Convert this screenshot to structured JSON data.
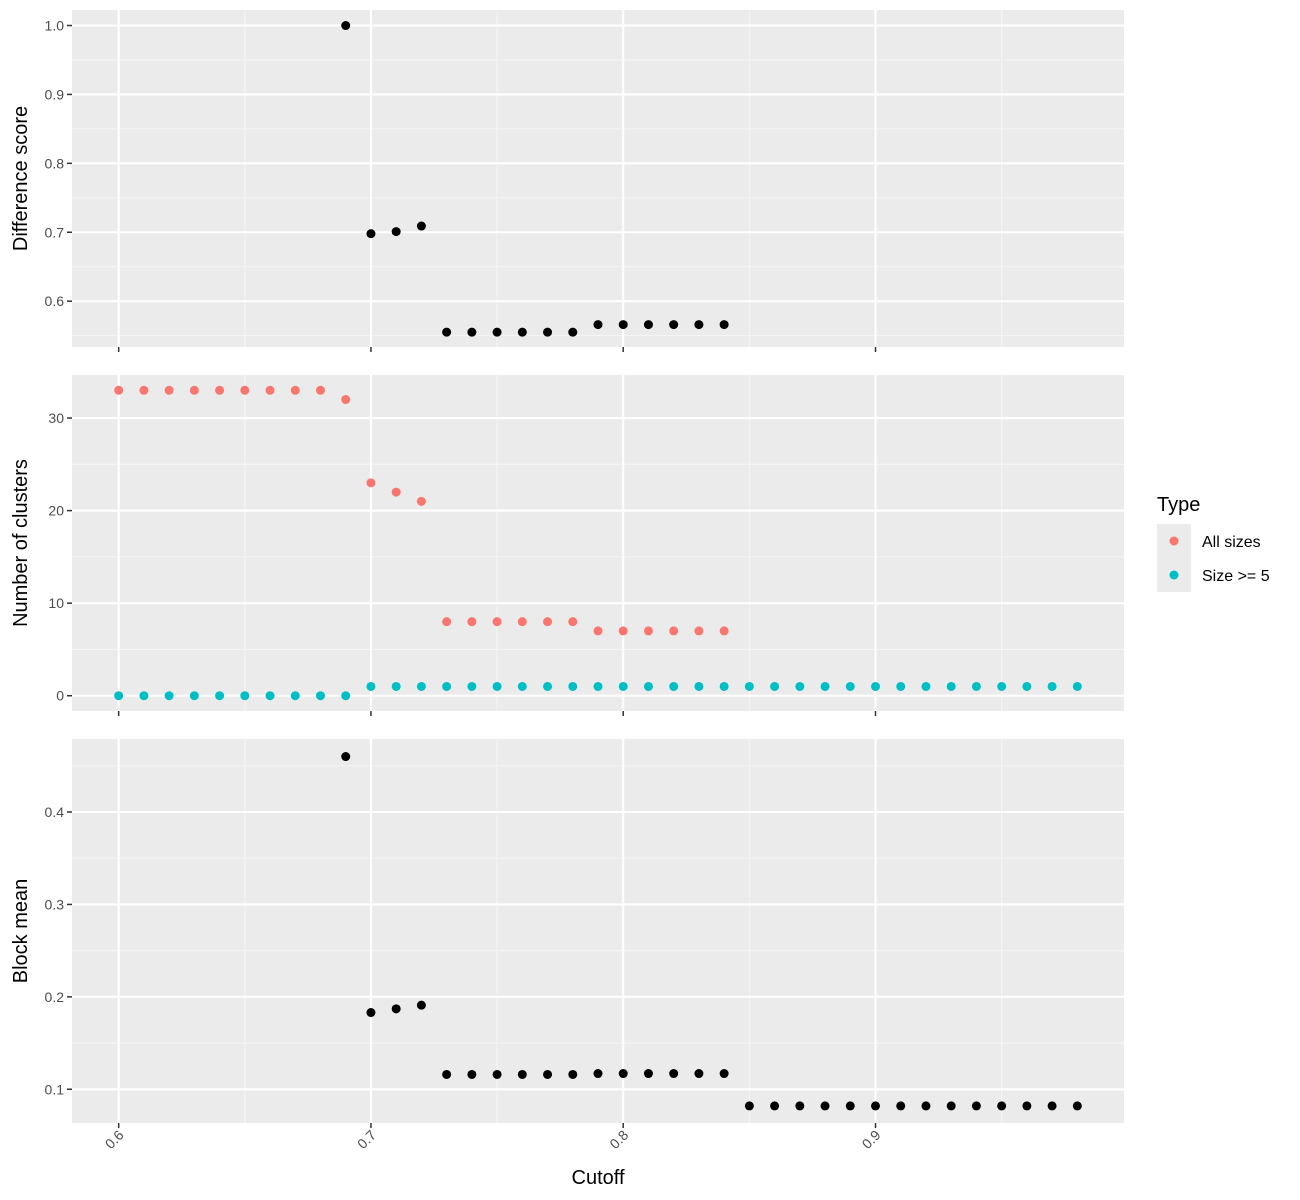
{
  "colors": {
    "panel_bg": "#EBEBEB",
    "grid_major": "#FFFFFF",
    "grid_minor": "#F5F5F5",
    "tick": "#333333",
    "tick_text": "#4D4D4D",
    "black_points": "#000000",
    "all_sizes": "#F8766D",
    "size_ge5": "#00BFC4"
  },
  "chart_data": {
    "type": "scatter",
    "layout": "three vertically stacked panels with a shared x axis",
    "xlabel": "Cutoff",
    "x_ticks": [
      0.6,
      0.7,
      0.8,
      0.9
    ],
    "x_tick_labels": [
      "0.6",
      "0.7",
      "0.8",
      "0.9"
    ],
    "xlim": [
      0.5815,
      0.9985
    ],
    "grid": true,
    "legend": {
      "title": "Type",
      "placement": "right",
      "items": [
        {
          "label": "All sizes",
          "color": "#F8766D"
        },
        {
          "label": "Size >= 5",
          "color": "#00BFC4"
        }
      ]
    },
    "panels": [
      {
        "ylabel": "Difference score",
        "ylim": [
          0.5335,
          1.0225
        ],
        "y_ticks": [
          0.6,
          0.7,
          0.8,
          0.9,
          1.0
        ],
        "y_tick_labels": [
          "0.6",
          "0.7",
          "0.8",
          "0.9",
          "1.0"
        ],
        "series": [
          {
            "color": "#000000",
            "x": [
              0.69,
              0.7,
              0.71,
              0.72,
              0.73,
              0.74,
              0.75,
              0.76,
              0.77,
              0.78,
              0.79,
              0.8,
              0.81,
              0.82,
              0.83,
              0.84
            ],
            "y": [
              1.0,
              0.698,
              0.701,
              0.709,
              0.555,
              0.555,
              0.555,
              0.555,
              0.555,
              0.555,
              0.566,
              0.566,
              0.566,
              0.566,
              0.566,
              0.566
            ]
          }
        ]
      },
      {
        "ylabel": "Number of clusters",
        "ylim": [
          -1.65,
          34.65
        ],
        "y_ticks": [
          0,
          10,
          20,
          30
        ],
        "y_tick_labels": [
          "0",
          "10",
          "20",
          "30"
        ],
        "series": [
          {
            "name": "All sizes",
            "color": "#F8766D",
            "x": [
              0.6,
              0.61,
              0.62,
              0.63,
              0.64,
              0.65,
              0.66,
              0.67,
              0.68,
              0.69,
              0.7,
              0.71,
              0.72,
              0.73,
              0.74,
              0.75,
              0.76,
              0.77,
              0.78,
              0.79,
              0.8,
              0.81,
              0.82,
              0.83,
              0.84
            ],
            "y": [
              33,
              33,
              33,
              33,
              33,
              33,
              33,
              33,
              33,
              32,
              23,
              22,
              21,
              8,
              8,
              8,
              8,
              8,
              8,
              7,
              7,
              7,
              7,
              7,
              7
            ]
          },
          {
            "name": "Size >= 5",
            "color": "#00BFC4",
            "x": [
              0.6,
              0.61,
              0.62,
              0.63,
              0.64,
              0.65,
              0.66,
              0.67,
              0.68,
              0.69,
              0.7,
              0.71,
              0.72,
              0.73,
              0.74,
              0.75,
              0.76,
              0.77,
              0.78,
              0.79,
              0.8,
              0.81,
              0.82,
              0.83,
              0.84,
              0.85,
              0.86,
              0.87,
              0.88,
              0.89,
              0.9,
              0.91,
              0.92,
              0.93,
              0.94,
              0.95,
              0.96,
              0.97,
              0.98
            ],
            "y": [
              0,
              0,
              0,
              0,
              0,
              0,
              0,
              0,
              0,
              0,
              1,
              1,
              1,
              1,
              1,
              1,
              1,
              1,
              1,
              1,
              1,
              1,
              1,
              1,
              1,
              1,
              1,
              1,
              1,
              1,
              1,
              1,
              1,
              1,
              1,
              1,
              1,
              1,
              1
            ]
          }
        ]
      },
      {
        "ylabel": "Block mean",
        "ylim": [
          0.0635,
          0.479
        ],
        "y_ticks": [
          0.1,
          0.2,
          0.3,
          0.4
        ],
        "y_tick_labels": [
          "0.1",
          "0.2",
          "0.3",
          "0.4"
        ],
        "series": [
          {
            "color": "#000000",
            "x": [
              0.69,
              0.7,
              0.71,
              0.72,
              0.73,
              0.74,
              0.75,
              0.76,
              0.77,
              0.78,
              0.79,
              0.8,
              0.81,
              0.82,
              0.83,
              0.84,
              0.85,
              0.86,
              0.87,
              0.88,
              0.89,
              0.9,
              0.91,
              0.92,
              0.93,
              0.94,
              0.95,
              0.96,
              0.97,
              0.98
            ],
            "y": [
              0.46,
              0.183,
              0.187,
              0.191,
              0.116,
              0.116,
              0.116,
              0.116,
              0.116,
              0.116,
              0.117,
              0.117,
              0.117,
              0.117,
              0.117,
              0.117,
              0.082,
              0.082,
              0.082,
              0.082,
              0.082,
              0.082,
              0.082,
              0.082,
              0.082,
              0.082,
              0.082,
              0.082,
              0.082,
              0.082
            ]
          }
        ]
      }
    ]
  }
}
